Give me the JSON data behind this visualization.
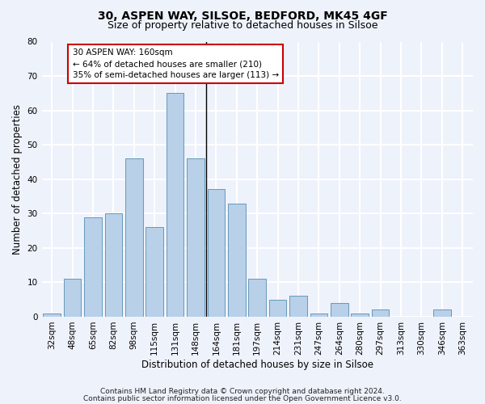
{
  "title1": "30, ASPEN WAY, SILSOE, BEDFORD, MK45 4GF",
  "title2": "Size of property relative to detached houses in Silsoe",
  "xlabel": "Distribution of detached houses by size in Silsoe",
  "ylabel": "Number of detached properties",
  "bar_labels": [
    "32sqm",
    "48sqm",
    "65sqm",
    "82sqm",
    "98sqm",
    "115sqm",
    "131sqm",
    "148sqm",
    "164sqm",
    "181sqm",
    "197sqm",
    "214sqm",
    "231sqm",
    "247sqm",
    "264sqm",
    "280sqm",
    "297sqm",
    "313sqm",
    "330sqm",
    "346sqm",
    "363sqm"
  ],
  "bar_values": [
    1,
    11,
    29,
    30,
    46,
    26,
    65,
    46,
    37,
    33,
    11,
    5,
    6,
    1,
    4,
    1,
    2,
    0,
    0,
    2,
    0
  ],
  "bar_color": "#b8d0e8",
  "bar_edge_color": "#6699bb",
  "annotation_text": "30 ASPEN WAY: 160sqm\n← 64% of detached houses are smaller (210)\n35% of semi-detached houses are larger (113) →",
  "annotation_box_color": "#ffffff",
  "annotation_box_edge": "#cc0000",
  "vline_x": 7.5,
  "ylim": [
    0,
    80
  ],
  "yticks": [
    0,
    10,
    20,
    30,
    40,
    50,
    60,
    70,
    80
  ],
  "footnote1": "Contains HM Land Registry data © Crown copyright and database right 2024.",
  "footnote2": "Contains public sector information licensed under the Open Government Licence v3.0.",
  "background_color": "#eef2fb",
  "grid_color": "#ffffff",
  "title1_fontsize": 10,
  "title2_fontsize": 9,
  "axis_label_fontsize": 8.5,
  "tick_fontsize": 7.5,
  "annot_fontsize": 7.5,
  "footnote_fontsize": 6.5
}
